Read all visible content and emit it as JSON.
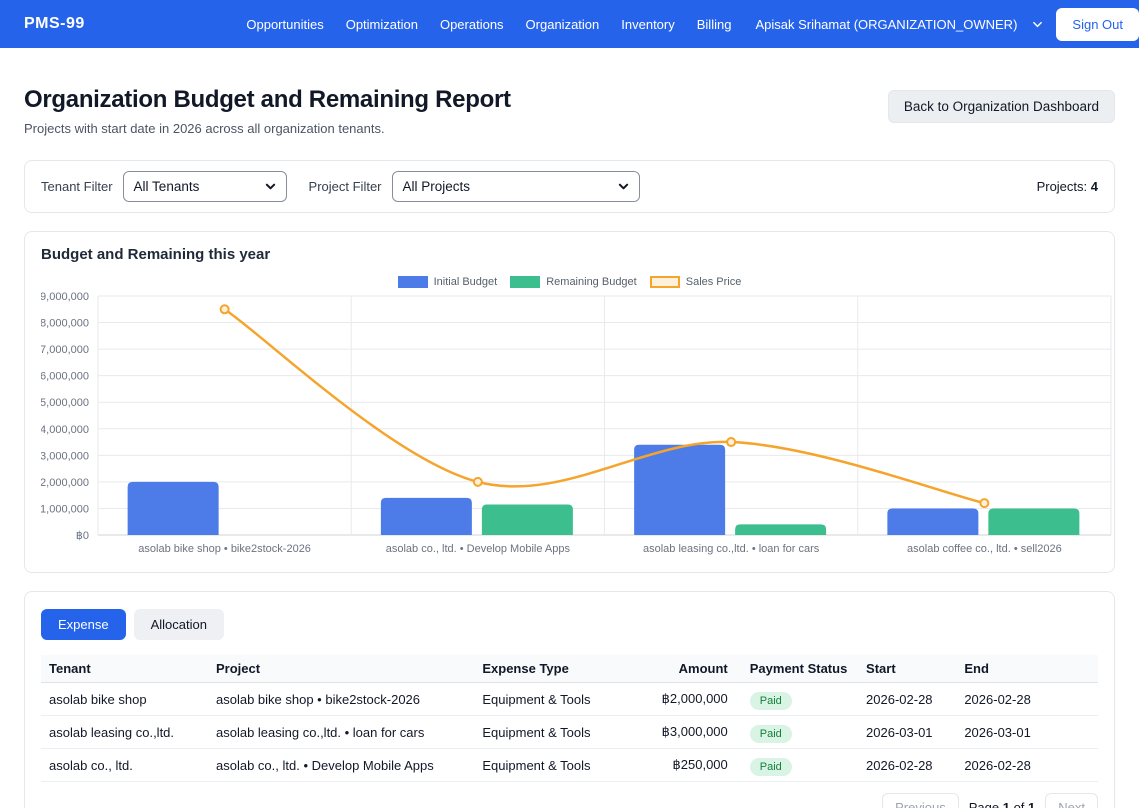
{
  "navbar": {
    "brand": "PMS-99",
    "items": [
      "Opportunities",
      "Optimization",
      "Operations",
      "Organization",
      "Inventory",
      "Billing"
    ],
    "user_menu": "Apisak Srihamat (ORGANIZATION_OWNER)",
    "sign_out": "Sign Out"
  },
  "header": {
    "title": "Organization Budget and Remaining Report",
    "subtitle": "Projects with start date in 2026 across all organization tenants.",
    "back_button": "Back to Organization Dashboard"
  },
  "filters": {
    "tenant_label": "Tenant Filter",
    "tenant_value": "All Tenants",
    "project_label": "Project Filter",
    "project_value": "All Projects",
    "projects_count_label": "Projects:",
    "projects_count": "4"
  },
  "chart_card": {
    "title": "Budget and Remaining this year"
  },
  "chart_data": {
    "type": "bar",
    "title": "Budget and Remaining this year",
    "categories": [
      "asolab bike shop • bike2stock-2026",
      "asolab co., ltd. • Develop Mobile Apps",
      "asolab leasing co.,ltd. • loan for cars",
      "asolab coffee co., ltd. • sell2026"
    ],
    "series": [
      {
        "name": "Initial Budget",
        "type": "bar",
        "color": "#4d7be8",
        "values": [
          2000000,
          1400000,
          3400000,
          1000000
        ]
      },
      {
        "name": "Remaining Budget",
        "type": "bar",
        "color": "#3cbe8e",
        "values": [
          0,
          1150000,
          400000,
          1000000
        ]
      },
      {
        "name": "Sales Price",
        "type": "line",
        "color": "#f5a42c",
        "values": [
          8500000,
          2000000,
          3500000,
          1200000
        ]
      }
    ],
    "ylim": [
      0,
      9000000
    ],
    "y_tick_step": 1000000,
    "currency": "฿",
    "grid": true,
    "legend_position": "top"
  },
  "tabs": [
    {
      "label": "Expense",
      "active": true
    },
    {
      "label": "Allocation",
      "active": false
    }
  ],
  "table": {
    "columns": [
      "Tenant",
      "Project",
      "Expense Type",
      "Amount",
      "Payment Status",
      "Start",
      "End"
    ],
    "rows": [
      {
        "tenant": "asolab bike shop",
        "project": "asolab bike shop • bike2stock-2026",
        "expense_type": "Equipment & Tools",
        "amount": "฿2,000,000",
        "payment_status": "Paid",
        "start": "2026-02-28",
        "end": "2026-02-28"
      },
      {
        "tenant": "asolab leasing co.,ltd.",
        "project": "asolab leasing co.,ltd. • loan for cars",
        "expense_type": "Equipment & Tools",
        "amount": "฿3,000,000",
        "payment_status": "Paid",
        "start": "2026-03-01",
        "end": "2026-03-01"
      },
      {
        "tenant": "asolab co., ltd.",
        "project": "asolab co., ltd. • Develop Mobile Apps",
        "expense_type": "Equipment & Tools",
        "amount": "฿250,000",
        "payment_status": "Paid",
        "start": "2026-02-28",
        "end": "2026-02-28"
      }
    ]
  },
  "pagination": {
    "previous": "Previous",
    "page_label": "Page",
    "page": "1",
    "of_label": "of",
    "total": "1",
    "next": "Next"
  }
}
